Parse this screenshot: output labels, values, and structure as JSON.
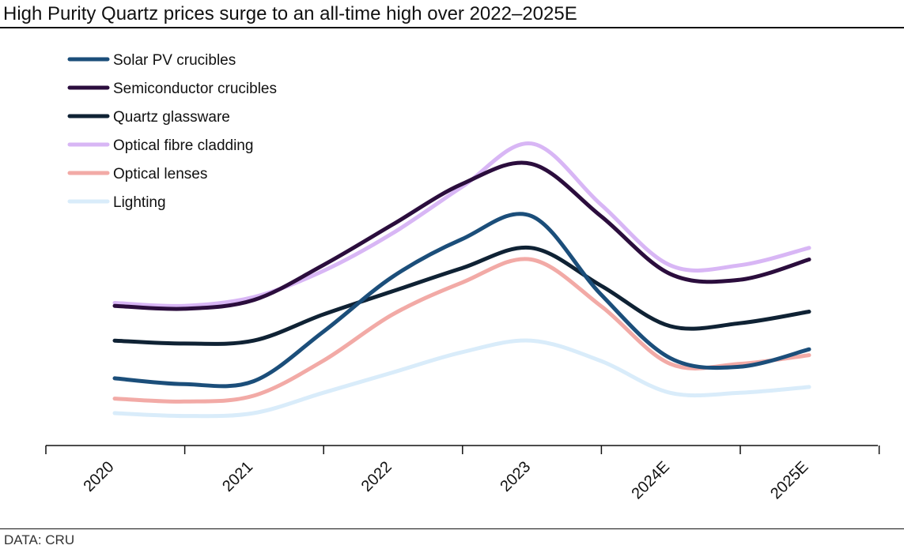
{
  "title": "High Purity Quartz prices surge to an all-time high over 2022–2025E",
  "source": "DATA: CRU",
  "chart_data": {
    "type": "line",
    "title": "High Purity Quartz prices surge to an all-time high over 2022–2025E",
    "xlabel": "",
    "ylabel": "",
    "categories": [
      "2020",
      "2021",
      "2022",
      "2023",
      "2024E",
      "2025E"
    ],
    "x": [
      0,
      0.5,
      1,
      1.5,
      2,
      2.5,
      3,
      3.5,
      4,
      4.5,
      5
    ],
    "ylim": [
      0,
      100
    ],
    "grid": false,
    "legend_position": "top-left",
    "series": [
      {
        "name": "Solar PV crucibles",
        "color": "#1b4e7a",
        "values": [
          18,
          16,
          17,
          34,
          53,
          66,
          74,
          47,
          25,
          22,
          28
        ]
      },
      {
        "name": "Semiconductor crucibles",
        "color": "#2b0d3d",
        "values": [
          43,
          42,
          45,
          57,
          71,
          85,
          92,
          74,
          54,
          52,
          59
        ]
      },
      {
        "name": "Quartz glassware",
        "color": "#0f2234",
        "values": [
          31,
          30,
          31,
          40,
          48,
          56,
          63,
          50,
          36,
          37,
          41
        ]
      },
      {
        "name": "Optical fibre cladding",
        "color": "#d8b6f5",
        "values": [
          44,
          43,
          46,
          55,
          68,
          84,
          99,
          78,
          57,
          57,
          63
        ]
      },
      {
        "name": "Optical lenses",
        "color": "#f2aaa6",
        "values": [
          11,
          10,
          12,
          24,
          40,
          51,
          59,
          43,
          23,
          23,
          26
        ]
      },
      {
        "name": "Lighting",
        "color": "#d9ecfa",
        "values": [
          6,
          5,
          6,
          13,
          20,
          27,
          31,
          24,
          13,
          13,
          15
        ]
      }
    ]
  }
}
